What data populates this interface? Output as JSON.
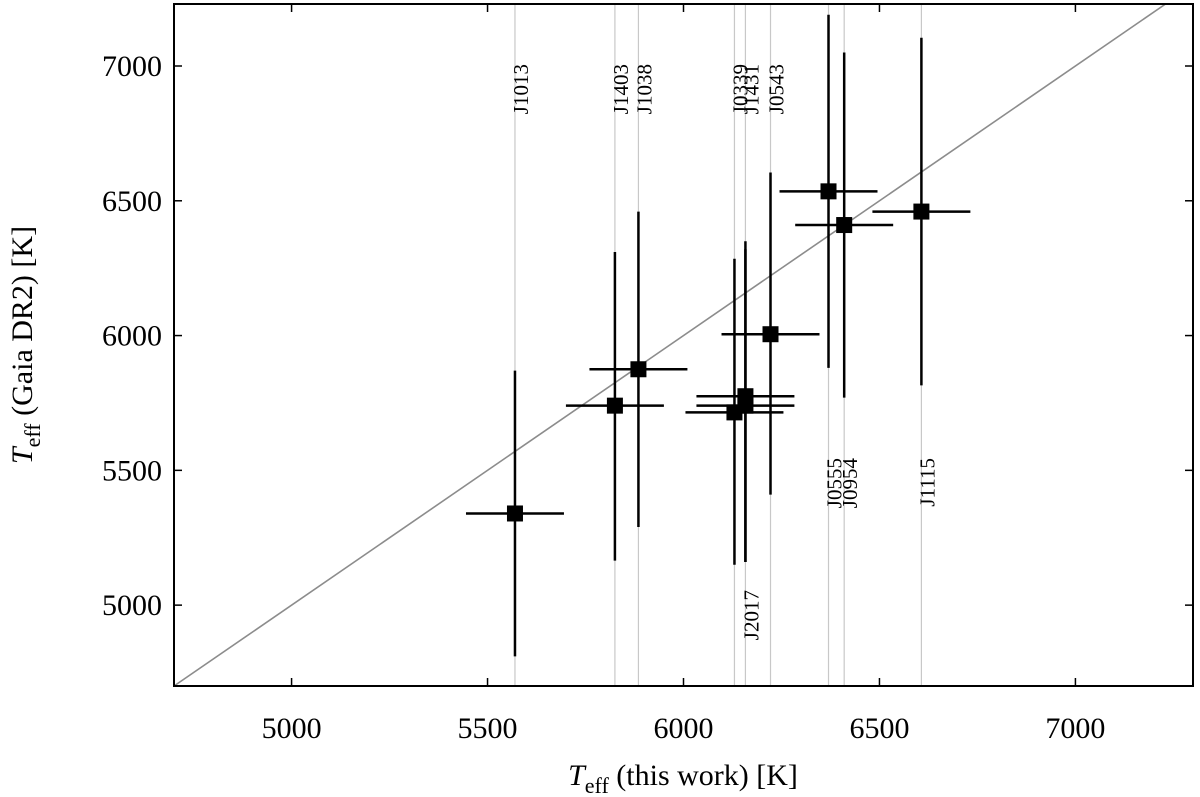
{
  "chart_data": {
    "type": "scatter",
    "xlabel": {
      "sym": "T",
      "sub": "eff",
      "rest": " (this work) [K]"
    },
    "ylabel": {
      "sym": "T",
      "sub": "eff",
      "rest": " (Gaia DR2) [K]"
    },
    "xlim": [
      4700,
      7300
    ],
    "ylim": [
      4700,
      7230
    ],
    "xticks": [
      5000,
      5500,
      6000,
      6500,
      7000
    ],
    "yticks": [
      5000,
      5500,
      6000,
      6500,
      7000
    ],
    "grid": false,
    "reference_line": "y = x",
    "points": [
      {
        "x": 5570,
        "xerr": 125,
        "y": 5340,
        "yerr_lo": 530,
        "yerr_hi": 530
      },
      {
        "x": 5825,
        "xerr": 125,
        "y": 5740,
        "yerr_lo": 575,
        "yerr_hi": 570
      },
      {
        "x": 5885,
        "xerr": 125,
        "y": 5875,
        "yerr_lo": 585,
        "yerr_hi": 585
      },
      {
        "x": 6130,
        "xerr": 125,
        "y": 5715,
        "yerr_lo": 565,
        "yerr_hi": 570
      },
      {
        "x": 6158,
        "xerr": 125,
        "y": 5775,
        "yerr_lo": 615,
        "yerr_hi": 575
      },
      {
        "x": 6158,
        "xerr": 125,
        "y": 5740,
        "yerr_lo": 580,
        "yerr_hi": 580
      },
      {
        "x": 6222,
        "xerr": 125,
        "y": 6005,
        "yerr_lo": 595,
        "yerr_hi": 600
      },
      {
        "x": 6370,
        "xerr": 125,
        "y": 6535,
        "yerr_lo": 655,
        "yerr_hi": 655
      },
      {
        "x": 6410,
        "xerr": 125,
        "y": 6410,
        "yerr_lo": 640,
        "yerr_hi": 640
      },
      {
        "x": 6607,
        "xerr": 125,
        "y": 6460,
        "yerr_lo": 645,
        "yerr_hi": 645
      }
    ],
    "reference_stars": [
      {
        "name": "J1013",
        "x": 5570,
        "pos": "top"
      },
      {
        "name": "J1403",
        "x": 5825,
        "pos": "top"
      },
      {
        "name": "J1038",
        "x": 5885,
        "pos": "top"
      },
      {
        "name": "J0339",
        "x": 6130,
        "pos": "top"
      },
      {
        "name": "J1431",
        "x": 6158,
        "pos": "top"
      },
      {
        "name": "J0543",
        "x": 6222,
        "pos": "top"
      },
      {
        "name": "J2017",
        "x": 6158,
        "pos": "low"
      },
      {
        "name": "J0555",
        "x": 6370,
        "pos": "mid"
      },
      {
        "name": "J0954",
        "x": 6410,
        "pos": "mid"
      },
      {
        "name": "J1115",
        "x": 6607,
        "pos": "mid"
      }
    ]
  }
}
